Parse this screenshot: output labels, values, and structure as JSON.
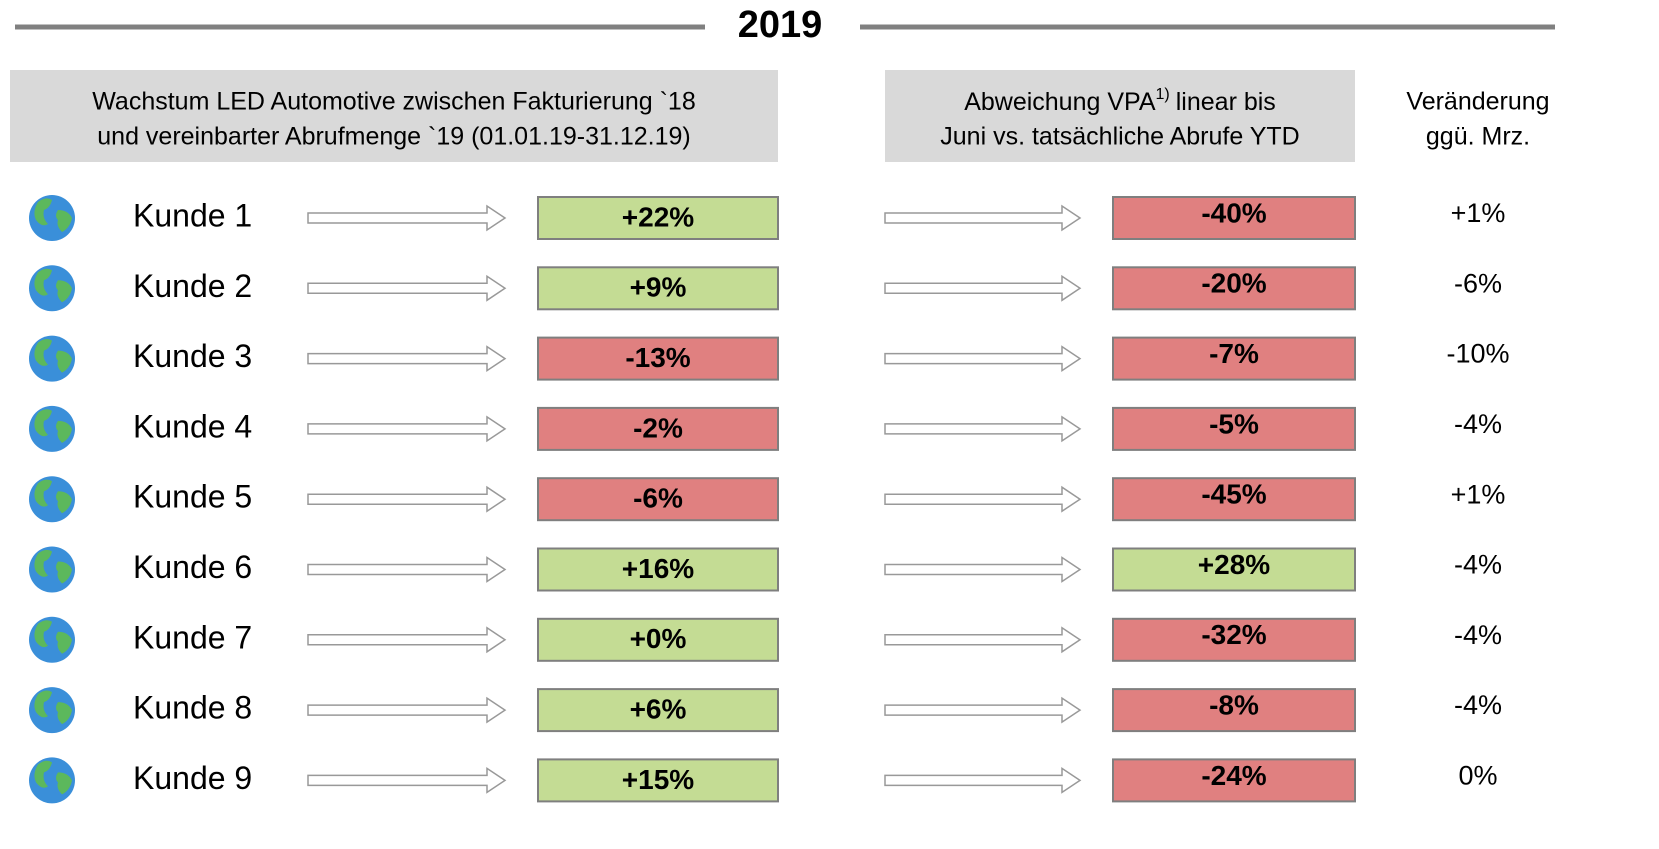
{
  "title": "2019",
  "headers": {
    "growth": [
      "Wachstum LED Automotive zwischen Fakturierung `18",
      "und vereinbarter Abrufmenge `19 (01.01.19-31.12.19)"
    ],
    "deviation": {
      "line1": "Abweichung VPA",
      "footnote": "1)",
      "line1_end": "linear bis",
      "line2": "Juni vs. tatsächliche Abrufe YTD"
    },
    "change": [
      "Veränderung",
      "ggü. Mrz."
    ]
  },
  "colors": {
    "positive": "#c4dc94",
    "negative": "#e08080"
  },
  "rows": [
    {
      "name": "Kunde 1",
      "growth": "+22%",
      "growth_color": "positive",
      "deviation": "-40%",
      "deviation_color": "negative",
      "change": "+1%"
    },
    {
      "name": "Kunde 2",
      "growth": "+9%",
      "growth_color": "positive",
      "deviation": "-20%",
      "deviation_color": "negative",
      "change": "-6%"
    },
    {
      "name": "Kunde 3",
      "growth": "-13%",
      "growth_color": "negative",
      "deviation": "-7%",
      "deviation_color": "negative",
      "change": "-10%"
    },
    {
      "name": "Kunde 4",
      "growth": "-2%",
      "growth_color": "negative",
      "deviation": "-5%",
      "deviation_color": "negative",
      "change": "-4%"
    },
    {
      "name": "Kunde 5",
      "growth": "-6%",
      "growth_color": "negative",
      "deviation": "-45%",
      "deviation_color": "negative",
      "change": "+1%"
    },
    {
      "name": "Kunde 6",
      "growth": "+16%",
      "growth_color": "positive",
      "deviation": "+28%",
      "deviation_color": "positive",
      "change": "-4%"
    },
    {
      "name": "Kunde 7",
      "growth": "+0%",
      "growth_color": "positive",
      "deviation": "-32%",
      "deviation_color": "negative",
      "change": "-4%"
    },
    {
      "name": "Kunde 8",
      "growth": "+6%",
      "growth_color": "positive",
      "deviation": "-8%",
      "deviation_color": "negative",
      "change": "-4%"
    },
    {
      "name": "Kunde 9",
      "growth": "+15%",
      "growth_color": "positive",
      "deviation": "-24%",
      "deviation_color": "negative",
      "change": "0%"
    }
  ]
}
